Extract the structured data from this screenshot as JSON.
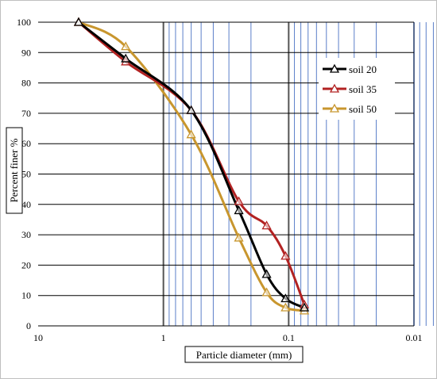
{
  "chart_data": {
    "type": "line",
    "xscale": "log-reversed",
    "xlim": [
      10,
      0.01
    ],
    "ylim": [
      0,
      100
    ],
    "yticks": [
      0,
      10,
      20,
      30,
      40,
      50,
      60,
      70,
      80,
      90,
      100
    ],
    "xticks": [
      "10",
      "1",
      "0.1",
      "0.01"
    ],
    "xticks_values": [
      10,
      1,
      0.1,
      0.01
    ],
    "xlabel": "Particle diameter (mm)",
    "ylabel": "Percent finer %",
    "grid": true,
    "legend_position": "right",
    "series": [
      {
        "name": "soil 20",
        "color": "#000000",
        "x": [
          4.75,
          2.0,
          0.6,
          0.25,
          0.15,
          0.106,
          0.075
        ],
        "y": [
          100,
          88,
          71,
          38,
          17,
          9,
          6
        ]
      },
      {
        "name": "soil 35",
        "color": "#b22222",
        "x": [
          4.75,
          2.0,
          0.6,
          0.25,
          0.15,
          0.106,
          0.075
        ],
        "y": [
          100,
          87,
          71,
          41,
          33,
          23,
          7
        ]
      },
      {
        "name": "soil 50",
        "color": "#c8962e",
        "x": [
          4.75,
          2.0,
          0.6,
          0.25,
          0.15,
          0.106,
          0.075
        ],
        "y": [
          100,
          92,
          63,
          29,
          11,
          6,
          5
        ]
      }
    ]
  }
}
